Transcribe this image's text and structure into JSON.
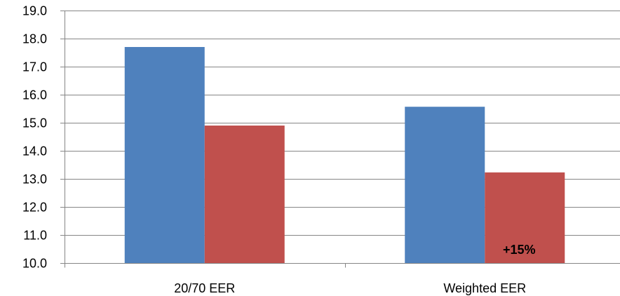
{
  "chart_data": {
    "type": "bar",
    "title": "",
    "xlabel": "",
    "ylabel": "",
    "categories": [
      "20/70 EER",
      "Weighted EER"
    ],
    "series": [
      {
        "color": "#4f81bd",
        "values": [
          17.7,
          15.57
        ]
      },
      {
        "color": "#c0504d",
        "values": [
          14.9,
          13.23
        ]
      }
    ],
    "ylim": [
      10.0,
      19.0
    ],
    "yticks": [
      10.0,
      11.0,
      12.0,
      13.0,
      14.0,
      15.0,
      16.0,
      17.0,
      18.0,
      19.0
    ],
    "ytick_labels": [
      "10.0",
      "11.0",
      "12.0",
      "13.0",
      "14.0",
      "15.0",
      "16.0",
      "17.0",
      "18.0",
      "19.0"
    ],
    "grid": true,
    "gridline_color": "#868686",
    "axis_color": "#868686",
    "legend": "none",
    "annotations": [
      {
        "text": "+15%",
        "category_index": 1,
        "series_index": 1
      }
    ]
  }
}
